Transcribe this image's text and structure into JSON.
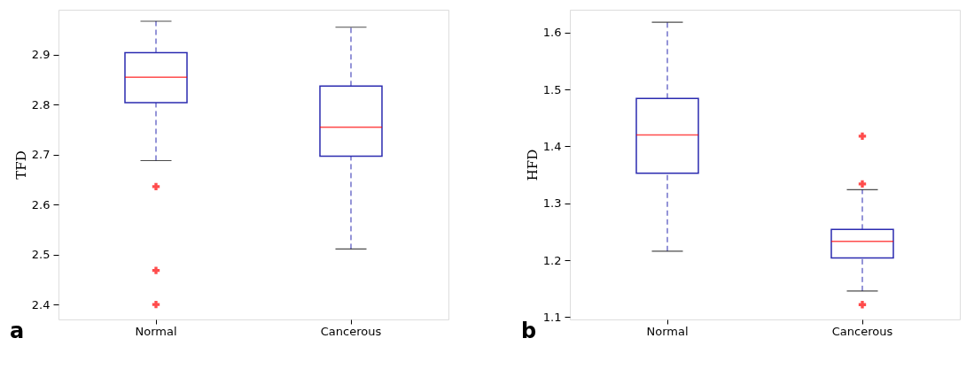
{
  "chart_data": [
    {
      "type": "box",
      "ylabel": "TFD",
      "categories": [
        "Normal",
        "Cancerous"
      ],
      "ylim": [
        2.37,
        2.99
      ],
      "yticks": [
        2.4,
        2.5,
        2.6,
        2.7,
        2.8,
        2.9
      ],
      "grid": false,
      "annotations": [
        "a"
      ],
      "boxes": [
        {
          "low": 2.688,
          "q1": 2.804,
          "median": 2.855,
          "q3": 2.904,
          "high": 2.967,
          "outliers": [
            2.636,
            2.468,
            2.4
          ]
        },
        {
          "low": 2.511,
          "q1": 2.697,
          "median": 2.755,
          "q3": 2.837,
          "high": 2.955
        }
      ]
    },
    {
      "type": "box",
      "ylabel": "HFD",
      "categories": [
        "Normal",
        "Cancerous"
      ],
      "ylim": [
        1.096,
        1.64
      ],
      "yticks": [
        1.1,
        1.2,
        1.3,
        1.4,
        1.5,
        1.6
      ],
      "grid": false,
      "annotations": [
        "b"
      ],
      "boxes": [
        {
          "low": 1.216,
          "q1": 1.353,
          "median": 1.42,
          "q3": 1.484,
          "high": 1.618
        },
        {
          "low": 1.146,
          "q1": 1.204,
          "median": 1.233,
          "q3": 1.254,
          "high": 1.324,
          "outliers": [
            1.418,
            1.334,
            1.122
          ]
        }
      ]
    }
  ]
}
